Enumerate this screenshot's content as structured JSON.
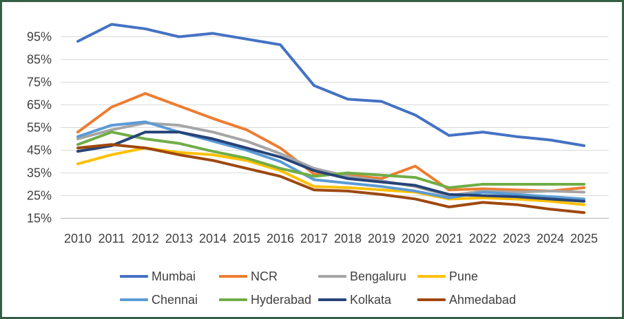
{
  "chart_data": {
    "type": "line",
    "title": "",
    "categories": [
      "2010",
      "2011",
      "2012",
      "2013",
      "2014",
      "2015",
      "2016",
      "2017",
      "2018",
      "2019",
      "2020",
      "2021",
      "2022",
      "2023",
      "2024",
      "2025"
    ],
    "y_axis": {
      "format": "percent",
      "min": 15,
      "max": 100.5,
      "ticks": [
        {
          "value": 15,
          "label": "15%"
        },
        {
          "value": 25,
          "label": "25%"
        },
        {
          "value": 35,
          "label": "35%"
        },
        {
          "value": 45,
          "label": "45%"
        },
        {
          "value": 55,
          "label": "55%"
        },
        {
          "value": 65,
          "label": "65%"
        },
        {
          "value": 75,
          "label": "75%"
        },
        {
          "value": 85,
          "label": "85%"
        },
        {
          "value": 95,
          "label": "95%"
        }
      ]
    },
    "grid": true,
    "legend_position": "bottom",
    "series": [
      {
        "name": "Mumbai",
        "color": "#4472C4",
        "values": [
          93,
          100.5,
          98.5,
          95,
          96.5,
          94,
          91.5,
          73.5,
          67.5,
          66.5,
          60.5,
          51.5,
          53,
          51,
          49.5,
          47
        ]
      },
      {
        "name": "NCR",
        "color": "#ED7D31",
        "values": [
          53,
          64,
          70,
          64.5,
          59,
          54,
          46,
          34.5,
          34,
          32.5,
          38,
          27.5,
          28,
          27.5,
          27,
          28.5
        ]
      },
      {
        "name": "Bengaluru",
        "color": "#A5A5A5",
        "values": [
          50,
          54,
          57,
          56,
          53,
          49,
          43.5,
          37,
          33.5,
          31.5,
          29,
          25,
          27,
          26.5,
          27,
          26.5
        ]
      },
      {
        "name": "Pune",
        "color": "#FFC000",
        "values": [
          39,
          43,
          46,
          44,
          43,
          40.5,
          36,
          29,
          28.5,
          27.5,
          26.5,
          23.5,
          24,
          23.5,
          22.5,
          21
        ]
      },
      {
        "name": "Chennai",
        "color": "#5B9BD5",
        "values": [
          51,
          56,
          57.5,
          53,
          49,
          45,
          40,
          32,
          30.5,
          29,
          27,
          24,
          26.5,
          25.5,
          24.5,
          23.5
        ]
      },
      {
        "name": "Hyderabad",
        "color": "#70AD47",
        "values": [
          47.5,
          53,
          50,
          48,
          44.5,
          41.5,
          37,
          33.5,
          35,
          34,
          33,
          28.5,
          30,
          30,
          30,
          30
        ]
      },
      {
        "name": "Kolkata",
        "color": "#264478",
        "values": [
          44.5,
          47,
          53,
          53,
          50,
          46,
          42,
          36,
          32.5,
          31,
          29.5,
          25.5,
          25,
          24.5,
          23.5,
          22.5
        ]
      },
      {
        "name": "Ahmedabad",
        "color": "#9E480E",
        "values": [
          46,
          47.5,
          46,
          43,
          40.5,
          37,
          33.5,
          27.5,
          27,
          25.5,
          23.5,
          20,
          22,
          21,
          19,
          17.5
        ]
      }
    ]
  },
  "colors": {
    "frame_border": "#355E45",
    "gridline": "#D9D9D9",
    "axis_line": "#BFBFBF",
    "label_text": "#404040",
    "background": "#FFFFFF"
  }
}
